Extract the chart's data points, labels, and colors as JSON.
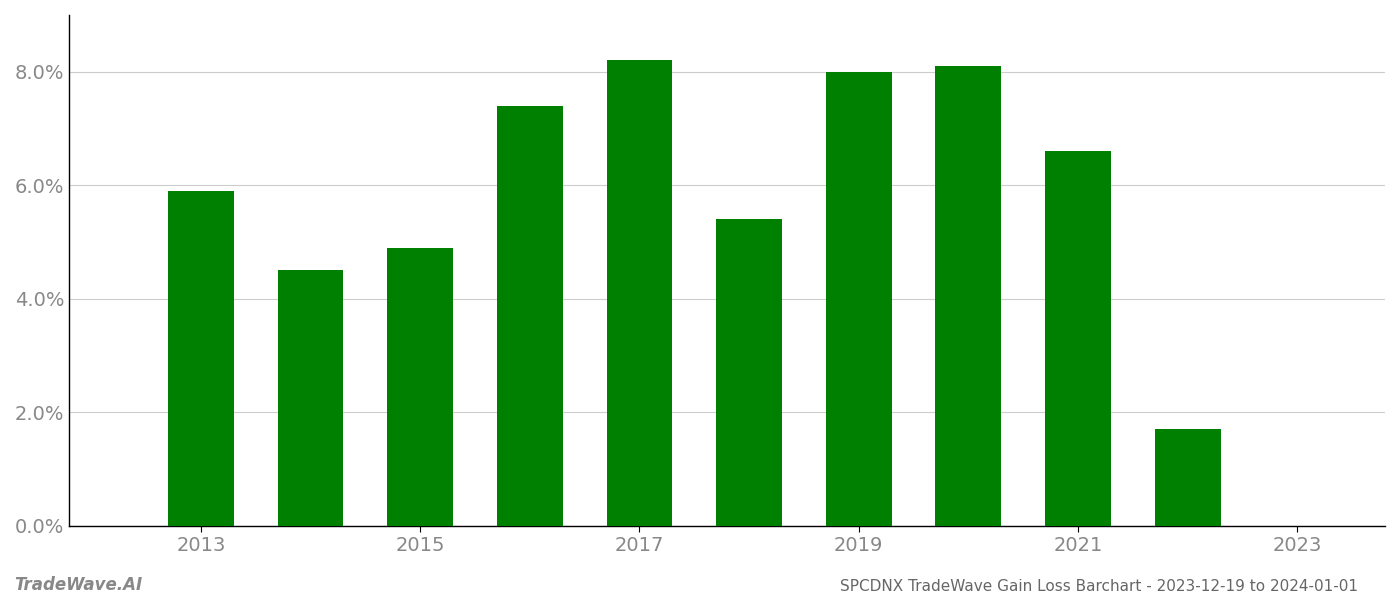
{
  "years": [
    2013,
    2014,
    2015,
    2016,
    2017,
    2018,
    2019,
    2020,
    2021,
    2022
  ],
  "values": [
    0.059,
    0.045,
    0.049,
    0.074,
    0.082,
    0.054,
    0.08,
    0.081,
    0.066,
    0.017
  ],
  "bar_color": "#008000",
  "title": "SPCDNX TradeWave Gain Loss Barchart - 2023-12-19 to 2024-01-01",
  "watermark_left": "TradeWave.AI",
  "xtick_labels": [
    "2013",
    "2015",
    "2017",
    "2019",
    "2021",
    "2023"
  ],
  "xtick_positions": [
    2013,
    2015,
    2017,
    2019,
    2021,
    2023
  ],
  "ylim": [
    0,
    0.09
  ],
  "ytick_positions": [
    0.0,
    0.02,
    0.04,
    0.06,
    0.08
  ],
  "ytick_labels": [
    "0.0%",
    "2.0%",
    "4.0%",
    "6.0%",
    "8.0%"
  ],
  "background_color": "#ffffff",
  "bar_width": 0.6,
  "grid_color": "#cccccc",
  "label_color": "#888888",
  "title_color": "#666666",
  "watermark_color": "#888888",
  "xlim_left": 2011.8,
  "xlim_right": 2023.8
}
